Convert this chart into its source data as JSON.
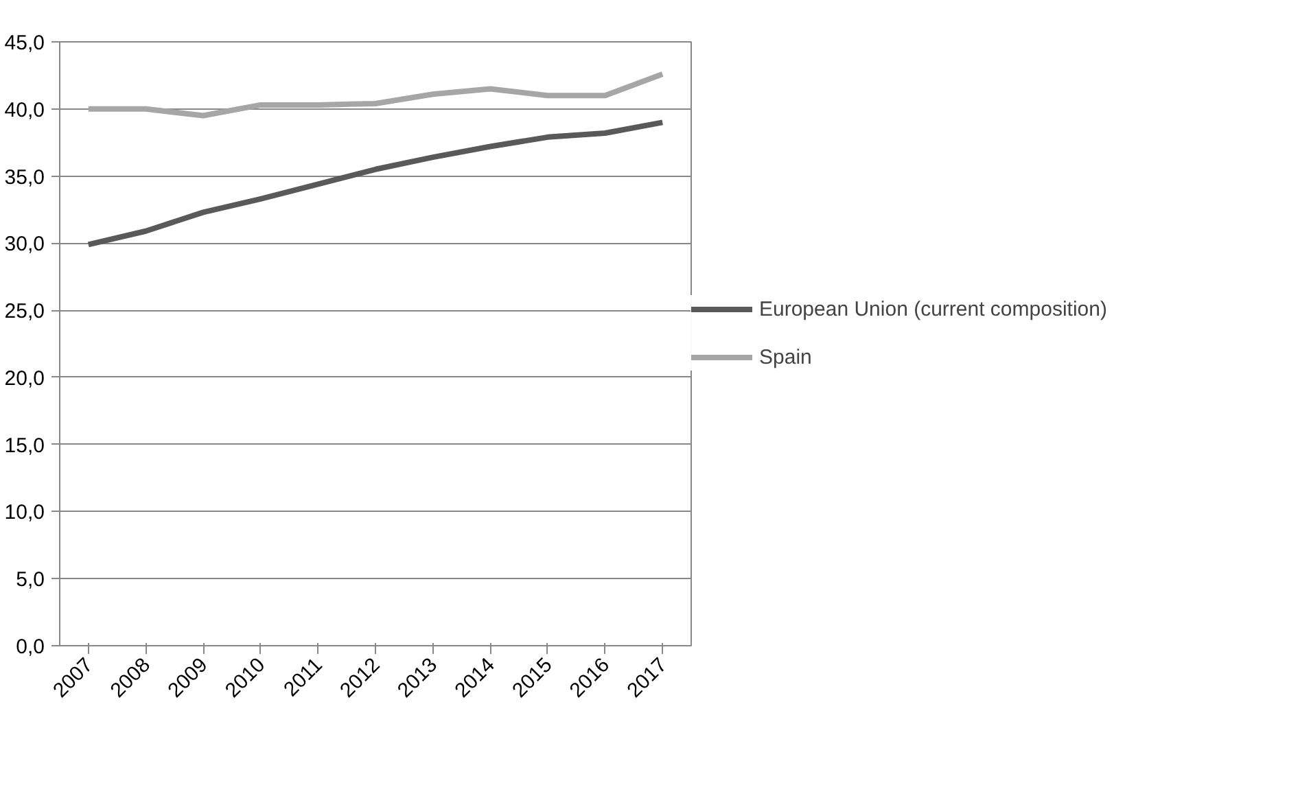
{
  "chart_data": {
    "type": "line",
    "categories": [
      "2007",
      "2008",
      "2009",
      "2010",
      "2011",
      "2012",
      "2013",
      "2014",
      "2015",
      "2016",
      "2017"
    ],
    "series": [
      {
        "name": "European Union (current composition)",
        "color": "#595959",
        "values": [
          29.9,
          30.9,
          32.3,
          33.3,
          34.4,
          35.5,
          36.4,
          37.2,
          37.9,
          38.2,
          39.0
        ]
      },
      {
        "name": "Spain",
        "color": "#a6a6a6",
        "values": [
          40.0,
          40.0,
          39.5,
          40.3,
          40.3,
          40.4,
          41.1,
          41.5,
          41.0,
          41.0,
          42.6
        ]
      }
    ],
    "ylim": [
      0,
      45
    ],
    "yticks": [
      {
        "value": 0,
        "label": "0,0"
      },
      {
        "value": 5,
        "label": "5,0"
      },
      {
        "value": 10,
        "label": "10,0"
      },
      {
        "value": 15,
        "label": "15,0"
      },
      {
        "value": 20,
        "label": "20,0"
      },
      {
        "value": 25,
        "label": "25,0"
      },
      {
        "value": 30,
        "label": "30,0"
      },
      {
        "value": 35,
        "label": "35,0"
      },
      {
        "value": 40,
        "label": "40,0"
      },
      {
        "value": 45,
        "label": "45,0"
      }
    ],
    "grid": "y",
    "legend": "right",
    "marker": "none",
    "line_style": "solid"
  }
}
